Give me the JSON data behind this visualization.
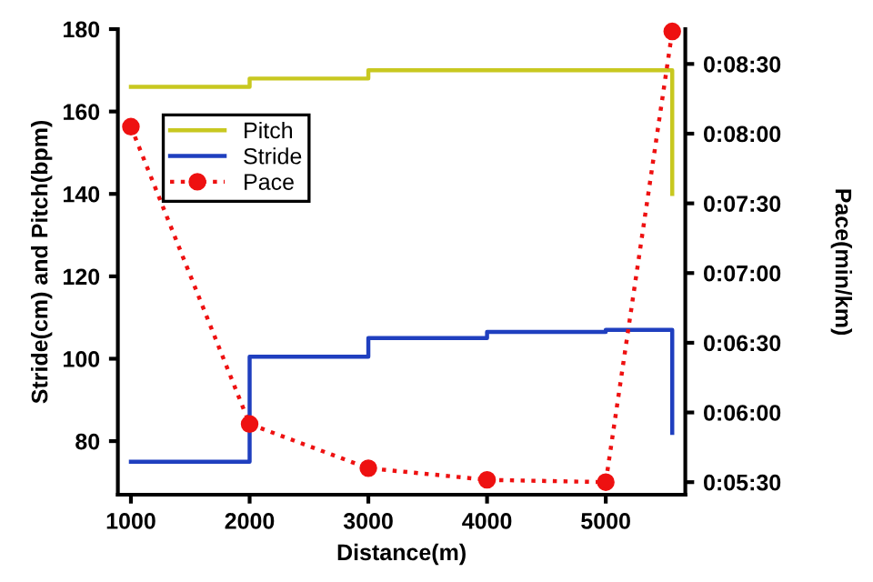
{
  "chart_data": {
    "type": "step",
    "xlabel": "Distance(m)",
    "ylabel": "Stride(cm) and Pitch(bpm)",
    "y2label": "Pace(min/km)",
    "xlim": [
      890,
      5670
    ],
    "xticks": [
      1000,
      2000,
      3000,
      4000,
      5000
    ],
    "ylim": [
      67,
      180
    ],
    "yticks": [
      80,
      100,
      120,
      140,
      160,
      180
    ],
    "y2lim": [
      324.6,
      525
    ],
    "y2ticks": [
      {
        "value": 330,
        "label": "0:05:30"
      },
      {
        "value": 360,
        "label": "0:06:00"
      },
      {
        "value": 390,
        "label": "0:06:30"
      },
      {
        "value": 420,
        "label": "0:07:00"
      },
      {
        "value": 450,
        "label": "0:07:30"
      },
      {
        "value": 480,
        "label": "0:08:00"
      },
      {
        "value": 510,
        "label": "0:08:30"
      }
    ],
    "grid": false,
    "legend": "top left",
    "series": [
      {
        "name": "Pitch",
        "color": "#c8c820",
        "x": [
          1000,
          2000,
          3000,
          4000,
          5000,
          5560,
          5560
        ],
        "values": [
          166,
          168,
          170,
          170,
          170,
          170,
          140
        ]
      },
      {
        "name": "Stride",
        "color": "#1f3fbf",
        "x": [
          1000,
          2000,
          3000,
          4000,
          5000,
          5560,
          5560
        ],
        "values": [
          75,
          100.5,
          105,
          106.5,
          107,
          107,
          82
        ]
      },
      {
        "name": "Pace",
        "type": "line",
        "axis": "y2",
        "color": "#ee1111",
        "marker": "circle",
        "line_style": "dotted",
        "x": [
          1000,
          2000,
          3000,
          4000,
          5000,
          5560
        ],
        "values": [
          483,
          355,
          336,
          331,
          330,
          524
        ]
      }
    ]
  }
}
